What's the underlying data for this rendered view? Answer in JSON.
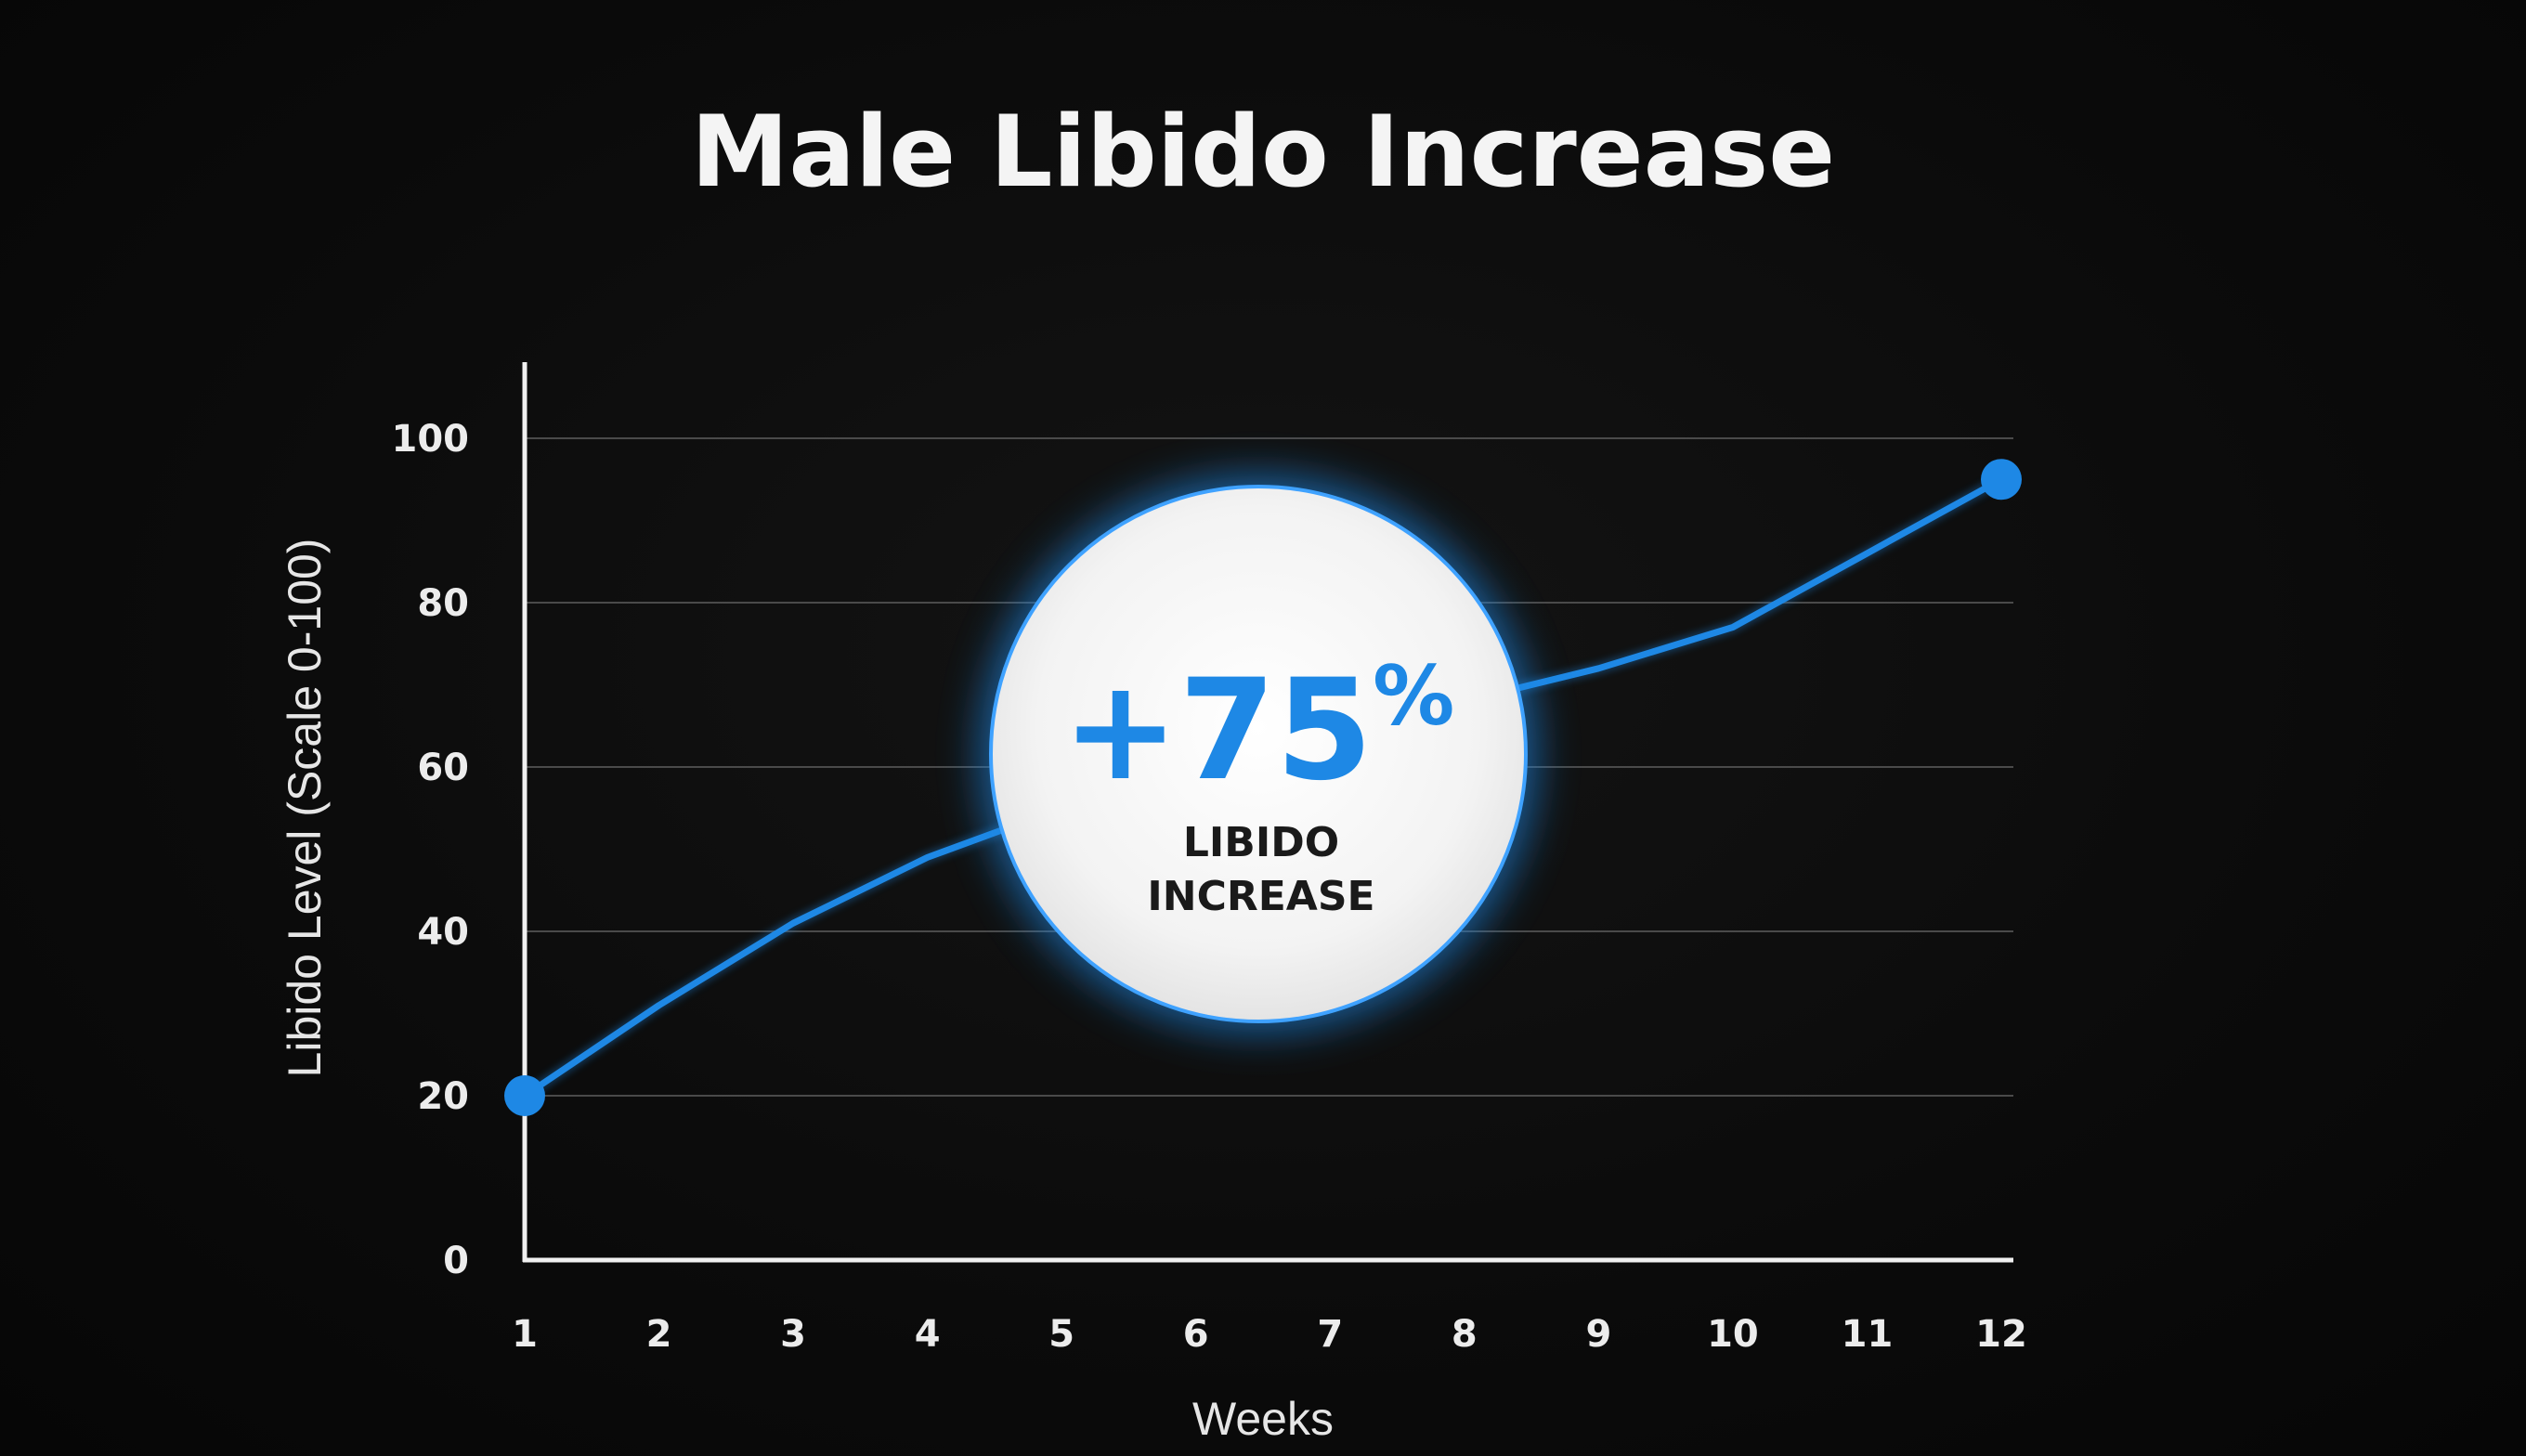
{
  "chart_data": {
    "type": "line",
    "title": "Male Libido Increase",
    "xlabel": "Weeks",
    "ylabel": "Libido Level (Scale 0-100)",
    "x": [
      1,
      2,
      3,
      4,
      5,
      6,
      7,
      8,
      9,
      10,
      11,
      12
    ],
    "series": [
      {
        "values": [
          20,
          31,
          41,
          49,
          55,
          60,
          65,
          68,
          72,
          77,
          86,
          95
        ]
      }
    ],
    "xlim": [
      1,
      12
    ],
    "ylim": [
      0,
      100
    ],
    "yticks": [
      0,
      20,
      40,
      60,
      80,
      100
    ],
    "grid": true,
    "line_color": "#1e88e5",
    "badge": {
      "value": "+75%",
      "label_line1": "LIBIDO",
      "label_line2": "INCREASE"
    }
  }
}
